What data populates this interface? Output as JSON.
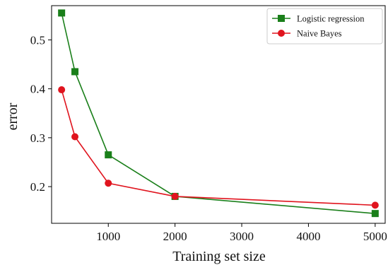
{
  "chart_data": {
    "type": "line",
    "title": "",
    "xlabel": "Training set size",
    "ylabel": "error",
    "xlim": [
      150,
      5150
    ],
    "ylim": [
      0.125,
      0.57
    ],
    "xticks": [
      1000,
      2000,
      3000,
      4000,
      5000
    ],
    "yticks": [
      0.2,
      0.3,
      0.4,
      0.5
    ],
    "grid": false,
    "legend_position": "top-right",
    "series": [
      {
        "name": "Logistic regression",
        "color": "#1a7f1a",
        "marker": "square",
        "x": [
          300,
          500,
          1000,
          2000,
          5000
        ],
        "y": [
          0.555,
          0.435,
          0.265,
          0.18,
          0.145
        ]
      },
      {
        "name": "Naive Bayes",
        "color": "#e0141e",
        "marker": "circle",
        "x": [
          300,
          500,
          1000,
          2000,
          5000
        ],
        "y": [
          0.398,
          0.302,
          0.207,
          0.18,
          0.162
        ]
      }
    ]
  }
}
